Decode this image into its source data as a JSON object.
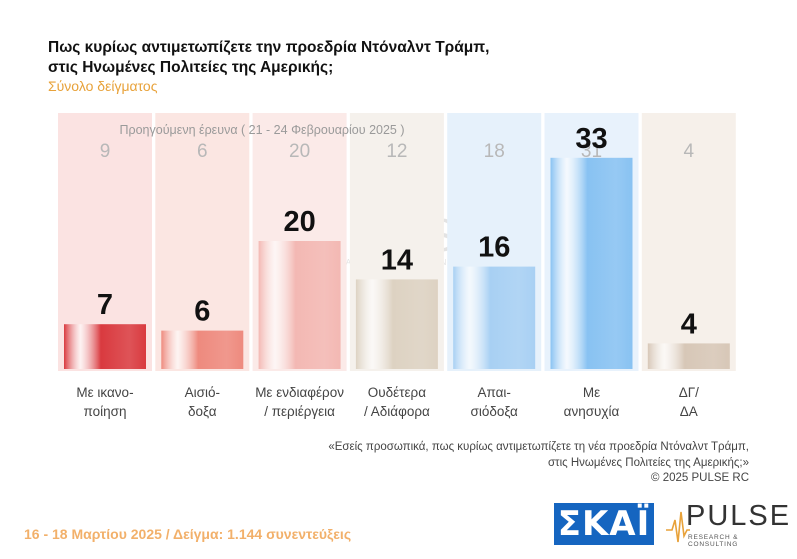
{
  "title_line1": "Πως κυρίως αντιμετωπίζετε την προεδρία Ντόναλντ Τράμπ,",
  "title_line2": "στις Ηνωμένες Πολιτείες της Αμερικής;",
  "subtitle": "Σύνολο δείγματος",
  "footnote_line1": "«Εσείς προσωπικά, πως κυρίως αντιμετωπίζετε τη νέα προεδρία Ντόναλντ Τράμπ,",
  "footnote_line2": "στις Ηνωμένες Πολιτείες της Αμερικής;»",
  "copyright": "©  2025  PULSE RC",
  "footer": "16 - 18 Μαρτίου 2025  /  Δείγμα:  1.144 συνεντεύξεις",
  "logos": {
    "skai": "ΣΚΑΪ",
    "pulse": "PULSE",
    "pulse_tagline": "RESEARCH & CONSULTING"
  },
  "chart_data": {
    "type": "bar",
    "title": "Πως κυρίως αντιμετωπίζετε την προεδρία Ντόναλντ Τράμπ, στις Ηνωμένες Πολιτείες της Αμερικής;",
    "categories": [
      [
        "Με ικανο-",
        "ποίηση"
      ],
      [
        "Αισιό-",
        "δοξα"
      ],
      [
        "Με ενδιαφέρον",
        "/ περιέργεια"
      ],
      [
        "Ουδέτερα",
        "/ Αδιάφορα"
      ],
      [
        "Απαι-",
        "σιόδοξα"
      ],
      [
        "Με",
        "ανησυχία"
      ],
      [
        "ΔΓ/",
        "ΔΑ"
      ]
    ],
    "series": [
      {
        "name": "16 - 18 Μαρτίου 2025",
        "values": [
          7,
          6,
          20,
          14,
          16,
          33,
          4
        ]
      },
      {
        "name": "Προηγούμενη έρευνα ( 21 - 24 Φεβρουαρίου 2025 )",
        "values": [
          9,
          6,
          20,
          12,
          18,
          31,
          4
        ]
      }
    ],
    "colors": [
      "#d93a3f",
      "#ee8a7e",
      "#f3b8b3",
      "#ddd2c2",
      "#a8d0f3",
      "#88c2f2",
      "#d7c7b7"
    ],
    "ghost_colors": [
      "#fbe3e2",
      "#fbe6e2",
      "#fbeae8",
      "#f5f1ec",
      "#e6f1fb",
      "#e8f2fc",
      "#f6f0ea"
    ],
    "previous_label": "Προηγούμενη έρευνα ( 21 - 24 Φεβρουαρίου 2025 )",
    "ylim": [
      0,
      40
    ],
    "legend": "none"
  }
}
